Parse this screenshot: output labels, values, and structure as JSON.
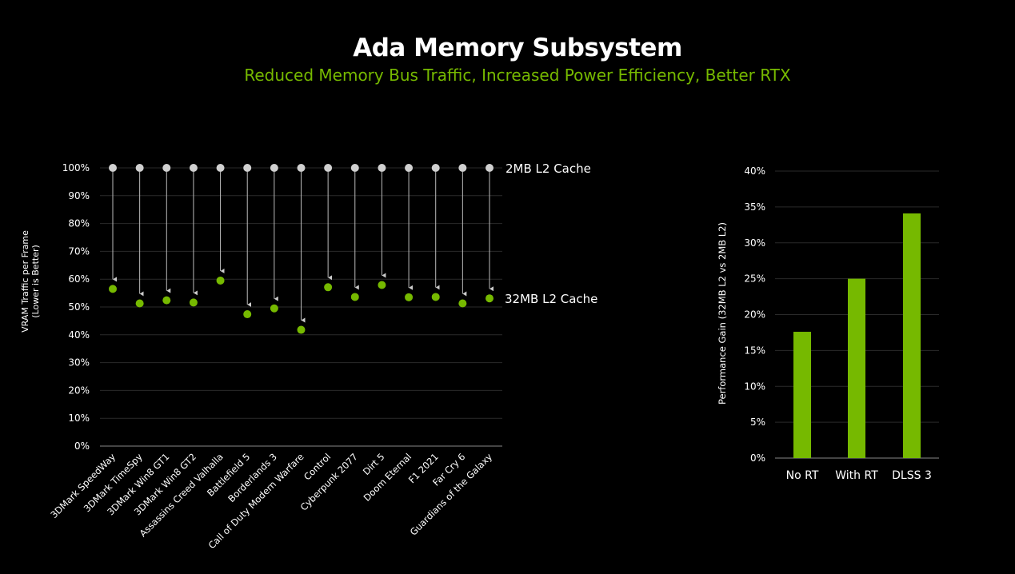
{
  "header": {
    "title": "Ada Memory Subsystem",
    "subtitle": "Reduced Memory Bus Traffic, Increased Power Efficiency, Better RTX"
  },
  "colors": {
    "accent": "#76b900",
    "baseline_point": "#d0d0d0",
    "background": "#000000",
    "grid": "#2a2a2a"
  },
  "chart_data": [
    {
      "type": "scatter",
      "ylabel": "VRAM Traffic per Frame (Lower is Better)",
      "ylabel_lines": [
        "VRAM Traffic per Frame",
        "(Lower is Better)"
      ],
      "ylim": [
        0,
        100
      ],
      "yticks": [
        "0%",
        "10%",
        "20%",
        "30%",
        "40%",
        "50%",
        "60%",
        "70%",
        "80%",
        "90%",
        "100%"
      ],
      "grid": true,
      "categories": [
        "3DMark SpeedWay",
        "3DMark TimeSpy",
        "3DMark Win8 GT1",
        "3DMark Win8 GT2",
        "Assassins Creed Valhalla",
        "Battlefield 5",
        "Borderlands 3",
        "Call of Duty Modern Warfare",
        "Control",
        "Cyberpunk 2077",
        "Dirt 5",
        "Doom Eternal",
        "F1 2021",
        "Far Cry 6",
        "Guardians of the Galaxy"
      ],
      "series": [
        {
          "name": "2MB L2 Cache",
          "values": [
            100,
            100,
            100,
            100,
            100,
            100,
            100,
            100,
            100,
            100,
            100,
            100,
            100,
            100,
            100
          ]
        },
        {
          "name": "32MB L2 Cache",
          "values": [
            56.5,
            51.3,
            52.4,
            51.6,
            59.5,
            47.4,
            49.5,
            41.8,
            57.1,
            53.6,
            57.9,
            53.5,
            53.6,
            51.3,
            53.1
          ]
        }
      ]
    },
    {
      "type": "bar",
      "ylabel": "Performance Gain (32MB L2 vs 2MB L2)",
      "ylim": [
        0,
        40
      ],
      "yticks": [
        "0%",
        "5%",
        "10%",
        "15%",
        "20%",
        "25%",
        "30%",
        "35%",
        "40%"
      ],
      "grid": true,
      "categories": [
        "No RT",
        "With RT",
        "DLSS 3"
      ],
      "values": [
        17.6,
        25.0,
        34.1
      ]
    }
  ]
}
